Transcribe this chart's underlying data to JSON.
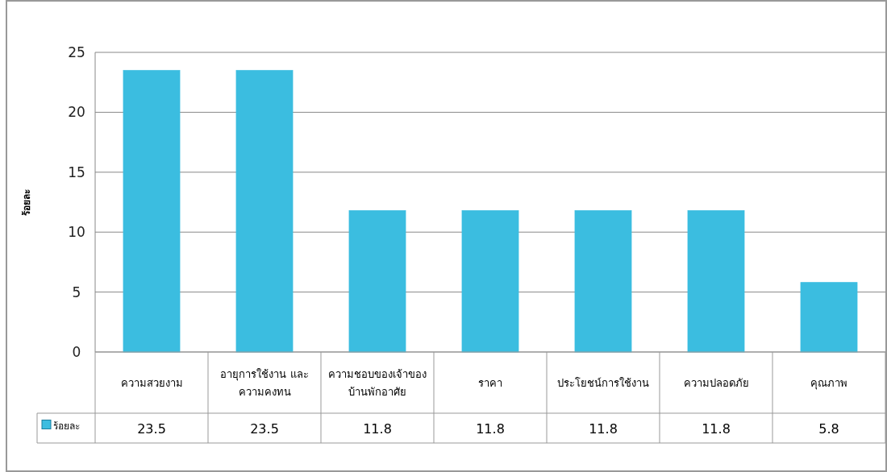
{
  "chart_data": {
    "type": "bar",
    "ylabel": "ร้อยละ",
    "categories": [
      "ความสวยงาม",
      "อายุการใช้งาน และ\nความคงทน",
      "ความชอบของเจ้าของ\nบ้านพักอาศัย",
      "ราคา",
      "ประโยชน์การใช้งาน",
      "ความปลอดภัย",
      "คุณภาพ"
    ],
    "series": [
      {
        "name": "ร้อยละ",
        "color": "#3bbde0",
        "values": [
          23.5,
          23.5,
          11.8,
          11.8,
          11.8,
          11.8,
          5.8
        ]
      }
    ],
    "ylim": [
      0,
      25
    ],
    "yticks": [
      0,
      5,
      10,
      15,
      20,
      25
    ],
    "grid": "y",
    "data_labels": true,
    "legend": "bottom"
  }
}
